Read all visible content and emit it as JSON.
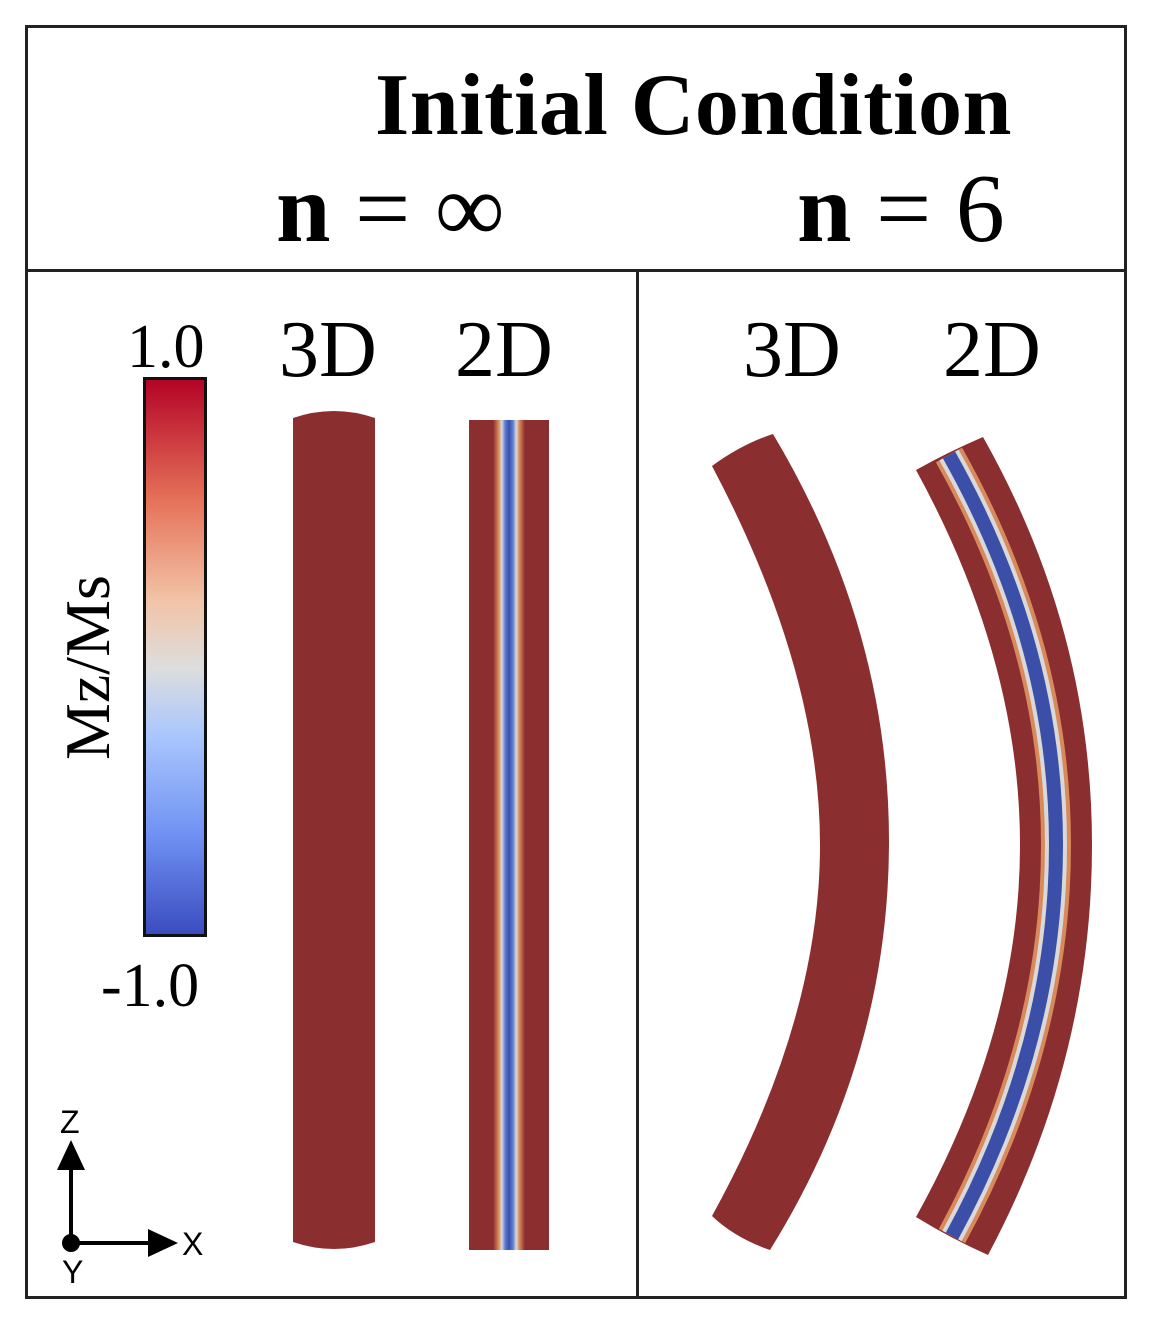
{
  "header": {
    "title": "Initial Condition",
    "n_infinite": {
      "prefix": "n",
      "rest": " = ∞"
    },
    "n_six": {
      "prefix": "n",
      "rest": " = 6"
    }
  },
  "panels": {
    "left": {
      "label_3d": "3D",
      "label_2d": "2D"
    },
    "right": {
      "label_3d": "3D",
      "label_2d": "2D"
    }
  },
  "colorbar": {
    "title": "Mz/Ms",
    "max_label": "1.0",
    "min_label": "-1.0",
    "colors": {
      "max": "#b40426",
      "mid": "#dddddd",
      "min": "#3b4cc0"
    }
  },
  "axes": {
    "z": "Z",
    "x": "X",
    "y": "Y"
  },
  "colors": {
    "domain_red": "#8b2e2f",
    "domain_blue": "#3b4fa8"
  }
}
